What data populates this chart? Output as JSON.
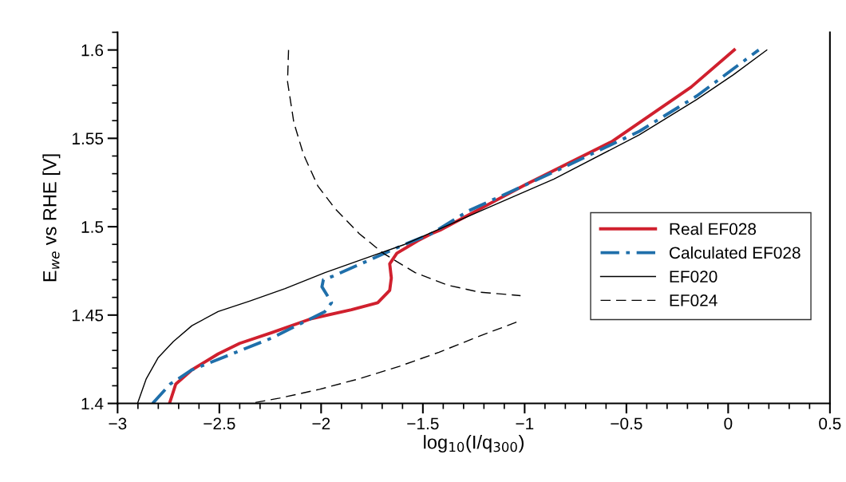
{
  "chart_data": {
    "type": "line",
    "xlabel": "log$_{10}$(I/q$_{300}$)",
    "ylabel": "E$_{we}$ vs RHE [V]",
    "xlim": [
      -3,
      0.5
    ],
    "ylim": [
      1.4,
      1.61
    ],
    "xticks": [
      -3,
      {
        "value": -2.9,
        "label": null
      },
      {
        "value": -2.8,
        "label": null
      },
      {
        "value": -2.7,
        "label": null
      },
      {
        "value": -2.6,
        "label": null
      },
      -2.5,
      {
        "value": -2.4,
        "label": null
      },
      {
        "value": -2.3,
        "label": null
      },
      {
        "value": -2.2,
        "label": null
      },
      {
        "value": -2.1,
        "label": null
      },
      -2,
      {
        "value": -1.9,
        "label": null
      },
      {
        "value": -1.8,
        "label": null
      },
      {
        "value": -1.7,
        "label": null
      },
      {
        "value": -1.6,
        "label": null
      },
      -1.5,
      {
        "value": -1.4,
        "label": null
      },
      {
        "value": -1.3,
        "label": null
      },
      {
        "value": -1.2,
        "label": null
      },
      {
        "value": -1.1,
        "label": null
      },
      -1,
      {
        "value": -0.9,
        "label": null
      },
      {
        "value": -0.8,
        "label": null
      },
      {
        "value": -0.7,
        "label": null
      },
      {
        "value": -0.6,
        "label": null
      },
      -0.5,
      {
        "value": -0.4,
        "label": null
      },
      {
        "value": -0.3,
        "label": null
      },
      {
        "value": -0.2,
        "label": null
      },
      {
        "value": -0.1,
        "label": null
      },
      0,
      {
        "value": 0.1,
        "label": null
      },
      {
        "value": 0.2,
        "label": null
      },
      {
        "value": 0.3,
        "label": null
      },
      {
        "value": 0.4,
        "label": null
      },
      0.5
    ],
    "yticks": [
      1.4,
      {
        "value": 1.41,
        "label": null
      },
      {
        "value": 1.42,
        "label": null
      },
      {
        "value": 1.43,
        "label": null
      },
      {
        "value": 1.44,
        "label": null
      },
      1.45,
      {
        "value": 1.46,
        "label": null
      },
      {
        "value": 1.47,
        "label": null
      },
      {
        "value": 1.48,
        "label": null
      },
      {
        "value": 1.49,
        "label": null
      },
      1.5,
      {
        "value": 1.51,
        "label": null
      },
      {
        "value": 1.52,
        "label": null
      },
      {
        "value": 1.53,
        "label": null
      },
      {
        "value": 1.54,
        "label": null
      },
      1.55,
      {
        "value": 1.56,
        "label": null
      },
      {
        "value": 1.57,
        "label": null
      },
      {
        "value": 1.58,
        "label": null
      },
      {
        "value": 1.59,
        "label": null
      },
      1.6,
      {
        "value": 1.61,
        "label": null
      }
    ],
    "grid": false,
    "legend": "right",
    "marker": "none",
    "series": [
      {
        "name": "Real EF028",
        "color": "#d0202e",
        "line_style": "solid",
        "x": [
          -2.745,
          -2.714,
          -2.635,
          -2.506,
          -2.4,
          -2.243,
          -2.047,
          -1.851,
          -1.722,
          -1.663,
          -1.655,
          -1.663,
          -1.628,
          -1.526,
          -1.459,
          -1.416,
          -0.993,
          -0.574,
          -0.182,
          0.03
        ],
        "values": [
          1.4,
          1.411,
          1.419,
          1.428,
          1.434,
          1.44,
          1.448,
          1.453,
          1.457,
          1.464,
          1.471,
          1.479,
          1.485,
          1.492,
          1.496,
          1.498,
          1.524,
          1.548,
          1.579,
          1.6
        ]
      },
      {
        "name": "Calculated EF028",
        "color": "#1f6faa",
        "line_style": "dashdot",
        "x": [
          -2.828,
          -2.741,
          -2.635,
          -2.439,
          -2.243,
          -1.981,
          -1.949,
          -1.969,
          -1.996,
          -1.989,
          -1.942,
          -1.785,
          -1.589,
          -1.459,
          -1.275,
          -0.856,
          -0.436,
          -0.154,
          0.15
        ],
        "values": [
          1.4,
          1.411,
          1.419,
          1.428,
          1.437,
          1.452,
          1.457,
          1.461,
          1.466,
          1.47,
          1.472,
          1.48,
          1.49,
          1.496,
          1.509,
          1.531,
          1.554,
          1.574,
          1.6
        ]
      },
      {
        "name": "EF020",
        "color": "#000000",
        "line_style": "solid",
        "x": [
          -2.902,
          -2.859,
          -2.8,
          -2.726,
          -2.635,
          -2.506,
          -2.349,
          -2.177,
          -1.981,
          -1.785,
          -1.589,
          -1.275,
          -0.856,
          -0.436,
          -0.154,
          0.026,
          0.19
        ],
        "values": [
          1.4,
          1.414,
          1.426,
          1.435,
          1.444,
          1.452,
          1.458,
          1.465,
          1.474,
          1.482,
          1.49,
          1.506,
          1.527,
          1.552,
          1.572,
          1.586,
          1.6
        ]
      },
      {
        "name": "EF024",
        "color": "#000000",
        "line_style": "dashed",
        "x": [
          -2.16,
          -2.165,
          -2.134,
          -2.087,
          -2.016,
          -1.93,
          -1.812,
          -1.695,
          -1.538,
          -1.381,
          -1.224,
          -1.02,
          null,
          -1.04,
          -1.224,
          -1.42,
          -1.616,
          -1.812,
          -2.008,
          -2.204,
          -2.349
        ],
        "values": [
          1.6,
          1.582,
          1.559,
          1.541,
          1.523,
          1.51,
          1.496,
          1.485,
          1.474,
          1.467,
          1.463,
          1.461,
          null,
          1.446,
          1.438,
          1.429,
          1.421,
          1.414,
          1.408,
          1.403,
          1.4
        ]
      }
    ]
  }
}
